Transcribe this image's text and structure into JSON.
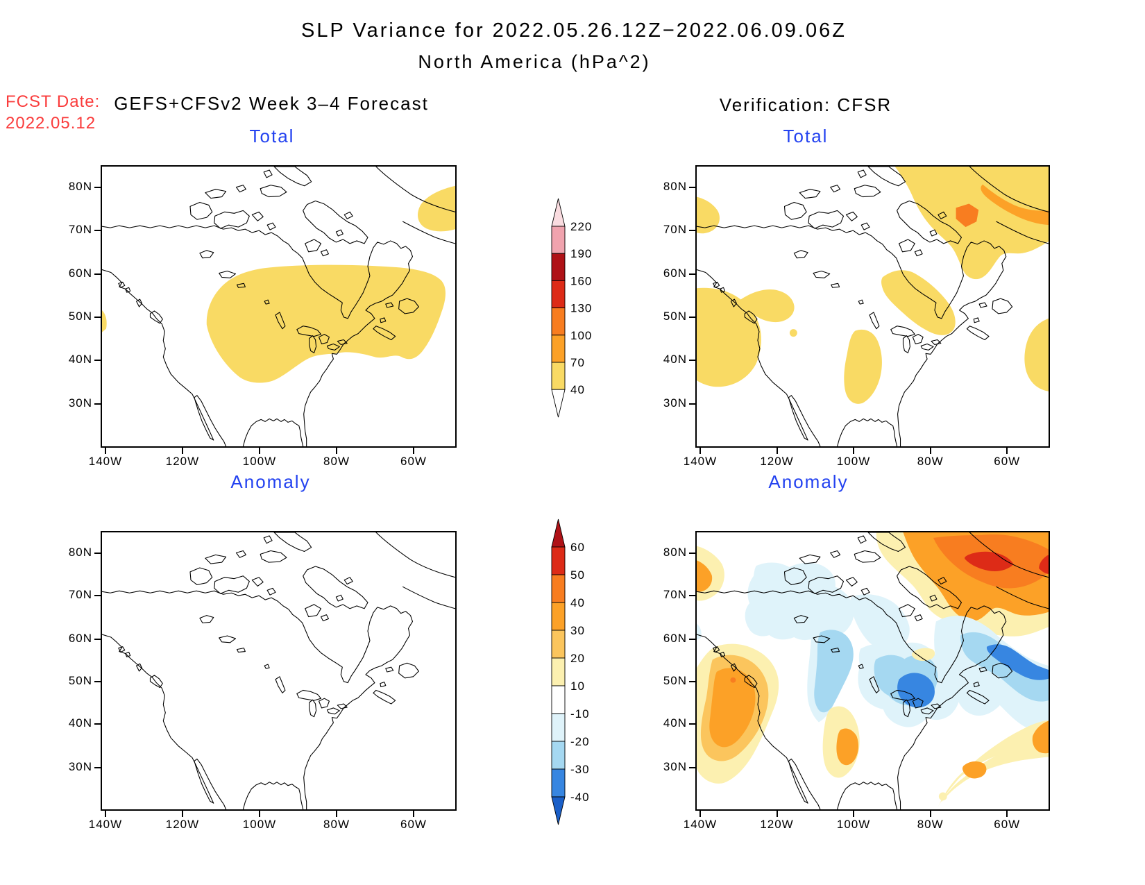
{
  "figure": {
    "title_line1": "SLP Variance for 2022.05.26.12Z−2022.06.09.06Z",
    "title_line2": "North America (hPa^2)",
    "fcst_date_label": "FCST Date:",
    "fcst_date_value": "2022.05.12",
    "left_header": "GEFS+CFSv2 Week 3–4 Forecast",
    "right_header": "Verification: CFSR"
  },
  "panels": {
    "tl": {
      "title": "Total"
    },
    "tr": {
      "title": "Total"
    },
    "bl": {
      "title": "Anomaly"
    },
    "br": {
      "title": "Anomaly"
    }
  },
  "axes": {
    "lat": [
      "80N",
      "70N",
      "60N",
      "50N",
      "40N",
      "30N"
    ],
    "lon": [
      "140W",
      "120W",
      "100W",
      "80W",
      "60W"
    ]
  },
  "colorbars": {
    "total": {
      "levels_top_to_bottom": [
        "220",
        "190",
        "160",
        "130",
        "100",
        "70",
        "40"
      ],
      "segment_colors_top_to_bottom": [
        "#f0a3ae",
        "#af1217",
        "#dd2b17",
        "#f87d20",
        "#fca127",
        "#f9da64"
      ],
      "above_color": "#fadce0",
      "below_color": "#ffffff"
    },
    "anomaly": {
      "levels_top_to_bottom": [
        "60",
        "50",
        "40",
        "30",
        "20",
        "10",
        "-10",
        "-20",
        "-30",
        "-40"
      ],
      "segment_colors_top_to_bottom": [
        "#dd2b17",
        "#f87d20",
        "#fca127",
        "#fbc55d",
        "#fcf0b0",
        "#ffffff",
        "#dff3fa",
        "#a5d8f1",
        "#3786e1"
      ],
      "above_color": "#af1217",
      "below_color": "#1a5fc8"
    }
  },
  "colors": {
    "panel_title_blue": "#2342f0",
    "fcst_date_red": "#fa3b3b",
    "shade_total_40_70": "#f9da64",
    "shade_total_70_100": "#fca127",
    "shade_total_100_130": "#f87d20",
    "shade_anom_10_20": "#fcf0b0",
    "shade_anom_20_30": "#fbc55d",
    "shade_anom_30_40": "#fca127",
    "shade_anom_40_50": "#f87d20",
    "shade_anom_50_60": "#dd2b17",
    "shade_anom_m20_m10": "#dff3fa",
    "shade_anom_m30_m20": "#a5d8f1",
    "shade_anom_m40_m30": "#3786e1"
  },
  "chart_data": {
    "type": "heatmap",
    "subtype": "filled-contour-maps-2x2",
    "title": "SLP Variance for 2022.05.26.12Z−2022.06.09.06Z",
    "subtitle": "North America (hPa^2)",
    "units": "hPa^2",
    "map_extent": {
      "lon_ticks": [
        "140W",
        "120W",
        "100W",
        "80W",
        "60W"
      ],
      "lat_ticks": [
        "80N",
        "70N",
        "60N",
        "50N",
        "40N",
        "30N"
      ],
      "approx_domain": "141W-48W, 20N-85N"
    },
    "legend_position": "center column between panel pairs",
    "grid": false,
    "panels": [
      {
        "id": "forecast-total",
        "column_header": "GEFS+CFSv2 Week 3–4 Forecast",
        "title": "Total",
        "contour_levels": [
          40,
          70,
          100,
          130,
          160,
          190,
          220
        ],
        "shaded_regions": [
          {
            "value_range": "40-70",
            "where": "large area over central/eastern Canada from ~105W to 52W, 39N-63N (south of Hudson Bay, Great Lakes to Quebec/Gulf of St Lawrence)"
          },
          {
            "value_range": "40-70",
            "where": "small patch at top-right near Greenland/Baffin Bay (~60W-50W, 72N-78N)"
          },
          {
            "value_range": "40-70",
            "where": "tiny sliver on west edge near 140W, 50N"
          }
        ]
      },
      {
        "id": "verification-total",
        "column_header": "Verification: CFSR",
        "title": "Total",
        "contour_levels": [
          40,
          70,
          100,
          130,
          160,
          190,
          220
        ],
        "shaded_regions": [
          {
            "value_range": "40-70",
            "where": "Pacific Northwest coast blob (~140W-118W, 38N-60N) with northeast lobe"
          },
          {
            "value_range": "40-70",
            "where": "west edge patch near 75N"
          },
          {
            "value_range": "40-70",
            "where": "central US plains blob (~100W-92W, 33N-50N)"
          },
          {
            "value_range": "40-70",
            "where": "broad region over Baffin Island / Baffin Bay / Greenland (NE corner of domain)"
          },
          {
            "value_range": "70-100",
            "where": "band along NW Greenland coast near top-right corner"
          },
          {
            "value_range": "100-130",
            "where": "small spot over northern Baffin Bay (~68W, 74N)"
          },
          {
            "value_range": "40-70",
            "where": "Quebec east of Hudson Bay (~92W-72W, 48N-62N)"
          },
          {
            "value_range": "40-70",
            "where": "west Atlantic at right edge (~50W, 38N-50N)"
          }
        ]
      },
      {
        "id": "forecast-anomaly",
        "column_header": "GEFS+CFSv2 Week 3–4 Forecast",
        "title": "Anomaly",
        "contour_levels": [
          -40,
          -30,
          -20,
          -10,
          10,
          20,
          30,
          40,
          50,
          60
        ],
        "shaded_regions": [],
        "note": "entire map within -10..10 (unshaded/white)"
      },
      {
        "id": "verification-anomaly",
        "column_header": "Verification: CFSR",
        "title": "Anomaly",
        "contour_levels": [
          -40,
          -30,
          -20,
          -10,
          10,
          20,
          30,
          40,
          50,
          60
        ],
        "shaded_regions": [
          {
            "value_range": "10-60",
            "where": "large positive anomaly over Baffin Bay/NW Greenland (NE corner), peak 50-60 near 78N 55W"
          },
          {
            "value_range": "10-30",
            "where": "west edge blob near 73-78N"
          },
          {
            "value_range": "10-40",
            "where": "Pacific Northwest coastal band ~58N down to 38N"
          },
          {
            "value_range": "10-30",
            "where": "small central-US blob near 97W, 34N-45N"
          },
          {
            "value_range": "10-30",
            "where": "SW Atlantic band from ~80W,28N to right edge ~52W,40N"
          },
          {
            "value_range": "-20--10",
            "where": "Canadian Arctic Archipelago band ~75N"
          },
          {
            "value_range": "-40--10",
            "where": "column from ~63N down over Hudson Bay to Great Lakes; core -30 to -40 near 50N 82W"
          },
          {
            "value_range": "-40--10",
            "where": "Labrador / Gulf of St Lawrence mass; core -30 to -40 near 57N 60W extending to right edge"
          }
        ]
      }
    ]
  }
}
